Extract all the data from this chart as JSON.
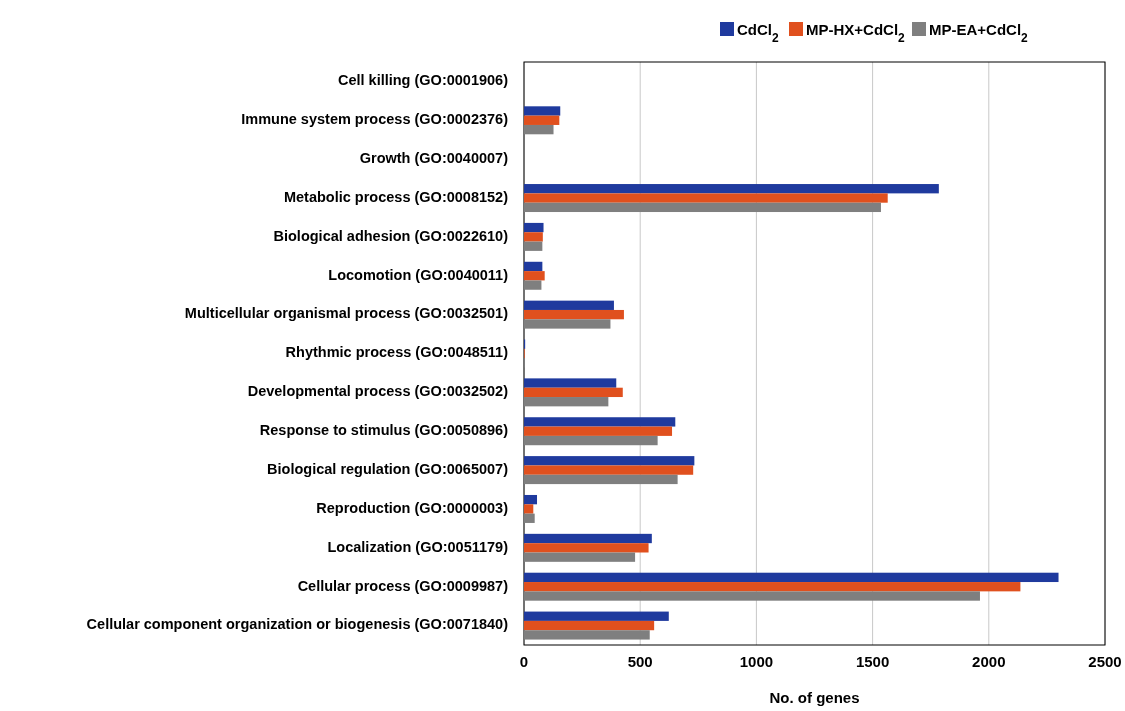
{
  "chart_data": {
    "type": "bar",
    "orientation": "horizontal",
    "xlabel": "No. of genes",
    "categories": [
      "Cell killing (GO:0001906)",
      "Immune system process (GO:0002376)",
      "Growth (GO:0040007)",
      "Metabolic process (GO:0008152)",
      "Biological adhesion (GO:0022610)",
      "Locomotion (GO:0040011)",
      "Multicellular organismal process (GO:0032501)",
      "Rhythmic process (GO:0048511)",
      "Developmental process (GO:0032502)",
      "Response to stimulus (GO:0050896)",
      "Biological regulation (GO:0065007)",
      "Reproduction (GO:0000003)",
      "Localization (GO:0051179)",
      "Cellular process (GO:0009987)",
      "Cellular component organization or biogenesis (GO:0071840)"
    ],
    "series": [
      {
        "name": "CdCl$_{2}$",
        "color": "#1f3a9e",
        "values": [
          0,
          156,
          0,
          1785,
          84,
          79,
          387,
          5,
          397,
          651,
          733,
          56,
          550,
          2300,
          623
        ]
      },
      {
        "name": "MP-HX+CdCl$_{2}$",
        "color": "#e0501e",
        "values": [
          0,
          152,
          0,
          1565,
          81,
          89,
          430,
          3,
          425,
          637,
          728,
          40,
          536,
          2136,
          560
        ]
      },
      {
        "name": "MP-EA+CdCl$_{2}$",
        "color": "#7f7f7f",
        "values": [
          0,
          127,
          0,
          1536,
          79,
          75,
          372,
          3,
          363,
          575,
          661,
          46,
          478,
          1962,
          541
        ]
      }
    ],
    "xlim": [
      0,
      2500
    ],
    "xticks": [
      0,
      500,
      1000,
      1500,
      2000,
      2500
    ],
    "grid": "x",
    "legend": "top right"
  }
}
